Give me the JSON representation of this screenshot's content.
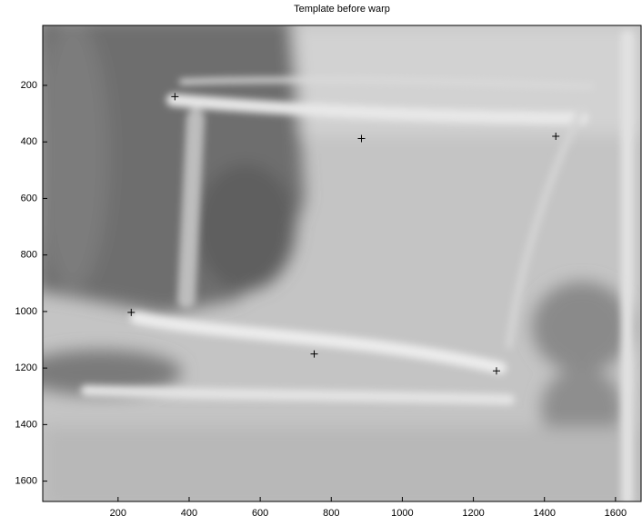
{
  "chart_data": {
    "type": "scatter",
    "title": "Template before warp",
    "x": [
      360,
      885,
      1432,
      237,
      752,
      1265
    ],
    "values": [
      240,
      388,
      380,
      1003,
      1150,
      1210
    ],
    "color": "#000000",
    "marker": "+",
    "xlim": [
      -12,
      1672
    ],
    "ylim": [
      -12,
      1672
    ],
    "y_reversed": true,
    "xticks": [
      200,
      400,
      600,
      800,
      1000,
      1200,
      1400,
      1600
    ],
    "yticks": [
      200,
      400,
      600,
      800,
      1000,
      1200,
      1400,
      1600
    ]
  }
}
